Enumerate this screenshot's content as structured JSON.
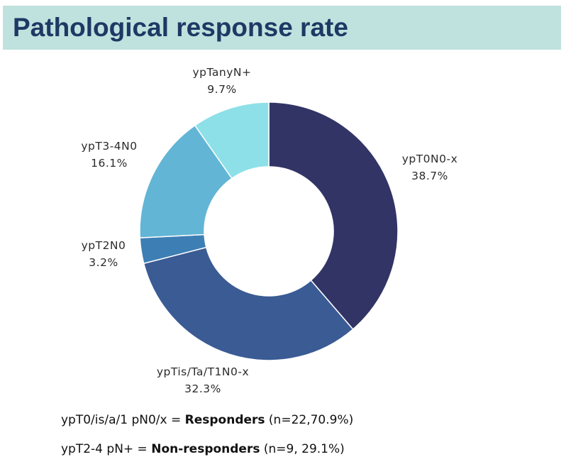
{
  "header": {
    "title": "Pathological response rate"
  },
  "chart_data": {
    "type": "pie",
    "donut": true,
    "categories": [
      "ypT0N0-x",
      "ypTis/Ta/T1N0-x",
      "ypT2N0",
      "ypT3-4N0",
      "ypTanyN+"
    ],
    "values": [
      38.7,
      32.3,
      3.2,
      16.1,
      9.7
    ],
    "value_labels": [
      "38.7%",
      "32.3%",
      "3.2%",
      "16.1%",
      "9.7%"
    ],
    "colors": [
      "#313465",
      "#3a5b94",
      "#3d7fb4",
      "#62b5d5",
      "#8ee0e8"
    ],
    "legend": "none"
  },
  "notes": {
    "responders": {
      "prefix": "ypT0/is/a/1 pN0/x = ",
      "bold": "Responders",
      "suffix": " (n=22,70.9%)"
    },
    "non_responders": {
      "prefix": "ypT2-4 pN+ = ",
      "bold": "Non-responders",
      "suffix": " (n=9, 29.1%)"
    }
  }
}
